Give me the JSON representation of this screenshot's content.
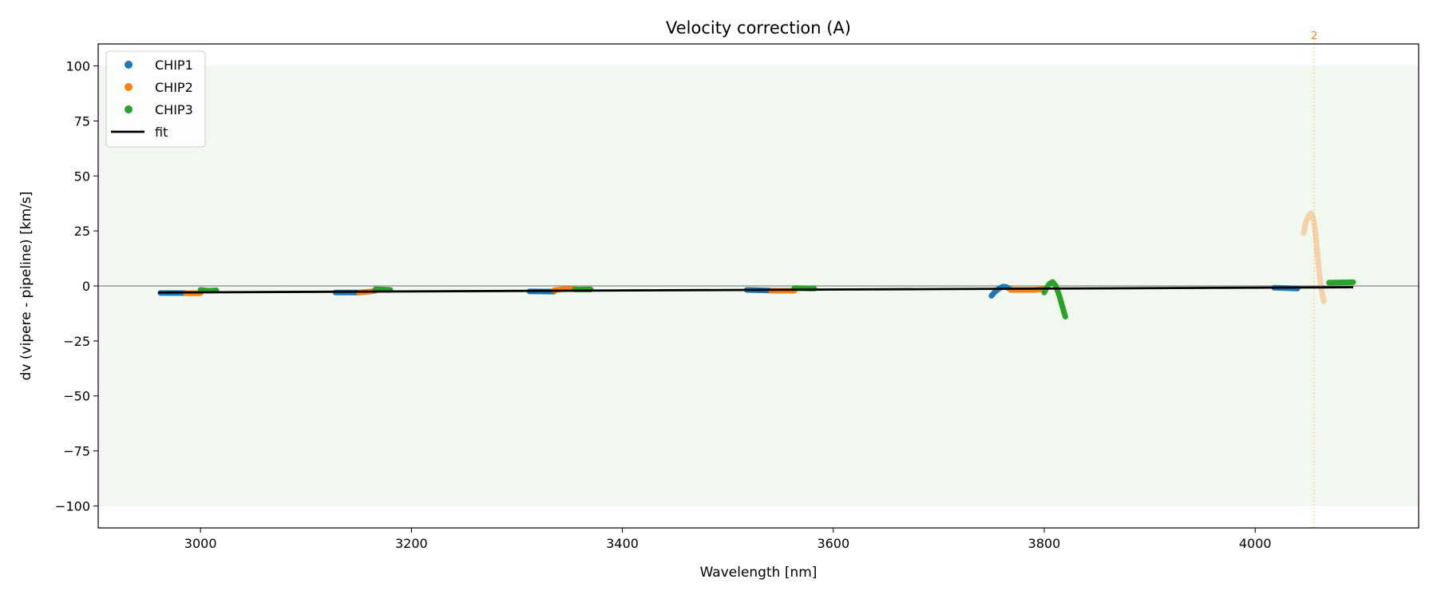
{
  "chart_data": {
    "type": "scatter",
    "title": "Velocity correction (A)",
    "xlabel": "Wavelength [nm]",
    "ylabel": "dv (vipere - pipeline) [km/s]",
    "xlim": [
      2903,
      4155
    ],
    "ylim": [
      -110,
      110
    ],
    "xticks": [
      3000,
      3200,
      3400,
      3600,
      3800,
      4000
    ],
    "yticks": [
      -100,
      -75,
      -50,
      -25,
      0,
      25,
      50,
      75,
      100
    ],
    "grid": false,
    "legend_placement": "upper-left",
    "shaded_band": {
      "ymin": -100,
      "ymax": 100,
      "color": "#2ca02c"
    },
    "zero_line": 0,
    "marker_line": {
      "x": 4056,
      "label": "2",
      "color": "#ff7f0e"
    },
    "series": [
      {
        "name": "CHIP1",
        "color": "#1f77b4",
        "segments": [
          {
            "points": [
              [
                2962,
                -3.2
              ],
              [
                2985,
                -3.2
              ]
            ]
          },
          {
            "points": [
              [
                3128,
                -3
              ],
              [
                3150,
                -3
              ]
            ]
          },
          {
            "points": [
              [
                3312,
                -2.5
              ],
              [
                3335,
                -2.6
              ]
            ]
          },
          {
            "points": [
              [
                3518,
                -1.8
              ],
              [
                3540,
                -2.1
              ]
            ]
          },
          {
            "points": [
              [
                3750,
                -4.5
              ],
              [
                3753,
                -2.8
              ],
              [
                3757,
                -1.2
              ],
              [
                3761,
                -0.3
              ],
              [
                3764,
                -0.5
              ],
              [
                3768,
                -1.5
              ]
            ]
          },
          {
            "points": [
              [
                4018,
                -0.8
              ],
              [
                4040,
                -1.2
              ]
            ]
          }
        ]
      },
      {
        "name": "CHIP2",
        "color": "#ff7f0e",
        "segments": [
          {
            "points": [
              [
                2986,
                -3.3
              ],
              [
                3000,
                -3.3
              ]
            ]
          },
          {
            "points": [
              [
                3150,
                -3
              ],
              [
                3160,
                -2.6
              ],
              [
                3166,
                -2.2
              ]
            ]
          },
          {
            "points": [
              [
                3335,
                -2
              ],
              [
                3345,
                -1.4
              ],
              [
                3355,
                -1.4
              ]
            ]
          },
          {
            "points": [
              [
                3541,
                -2.2
              ],
              [
                3563,
                -2.2
              ]
            ]
          },
          {
            "points": [
              [
                3768,
                -1.8
              ],
              [
                3790,
                -1.8
              ],
              [
                3800,
                -1.4
              ]
            ]
          },
          {
            "faded": true,
            "points": [
              [
                4046,
                24
              ],
              [
                4048,
                29
              ],
              [
                4051,
                32
              ],
              [
                4053,
                33
              ],
              [
                4055,
                31
              ],
              [
                4057,
                25
              ],
              [
                4059,
                15
              ],
              [
                4061,
                5
              ],
              [
                4063,
                -2
              ],
              [
                4065,
                -7
              ]
            ]
          }
        ]
      },
      {
        "name": "CHIP3",
        "color": "#2ca02c",
        "segments": [
          {
            "points": [
              [
                3000,
                -1.8
              ],
              [
                3008,
                -2.2
              ],
              [
                3015,
                -2
              ]
            ]
          },
          {
            "points": [
              [
                3166,
                -1.5
              ],
              [
                3180,
                -1.8
              ]
            ]
          },
          {
            "points": [
              [
                3355,
                -1.6
              ],
              [
                3370,
                -1.6
              ]
            ]
          },
          {
            "points": [
              [
                3563,
                -1
              ],
              [
                3582,
                -1.2
              ]
            ]
          },
          {
            "points": [
              [
                3800,
                -3
              ],
              [
                3802,
                -1
              ],
              [
                3805,
                1
              ],
              [
                3808,
                1.8
              ],
              [
                3811,
                0
              ],
              [
                3814,
                -4
              ],
              [
                3817,
                -9
              ],
              [
                3820,
                -14
              ]
            ]
          },
          {
            "points": [
              [
                4070,
                1.5
              ],
              [
                4093,
                1.7
              ]
            ]
          }
        ]
      }
    ],
    "fit": {
      "name": "fit",
      "color": "#000000",
      "points": [
        [
          2960,
          -3
        ],
        [
          4093,
          -0.6
        ]
      ]
    }
  }
}
